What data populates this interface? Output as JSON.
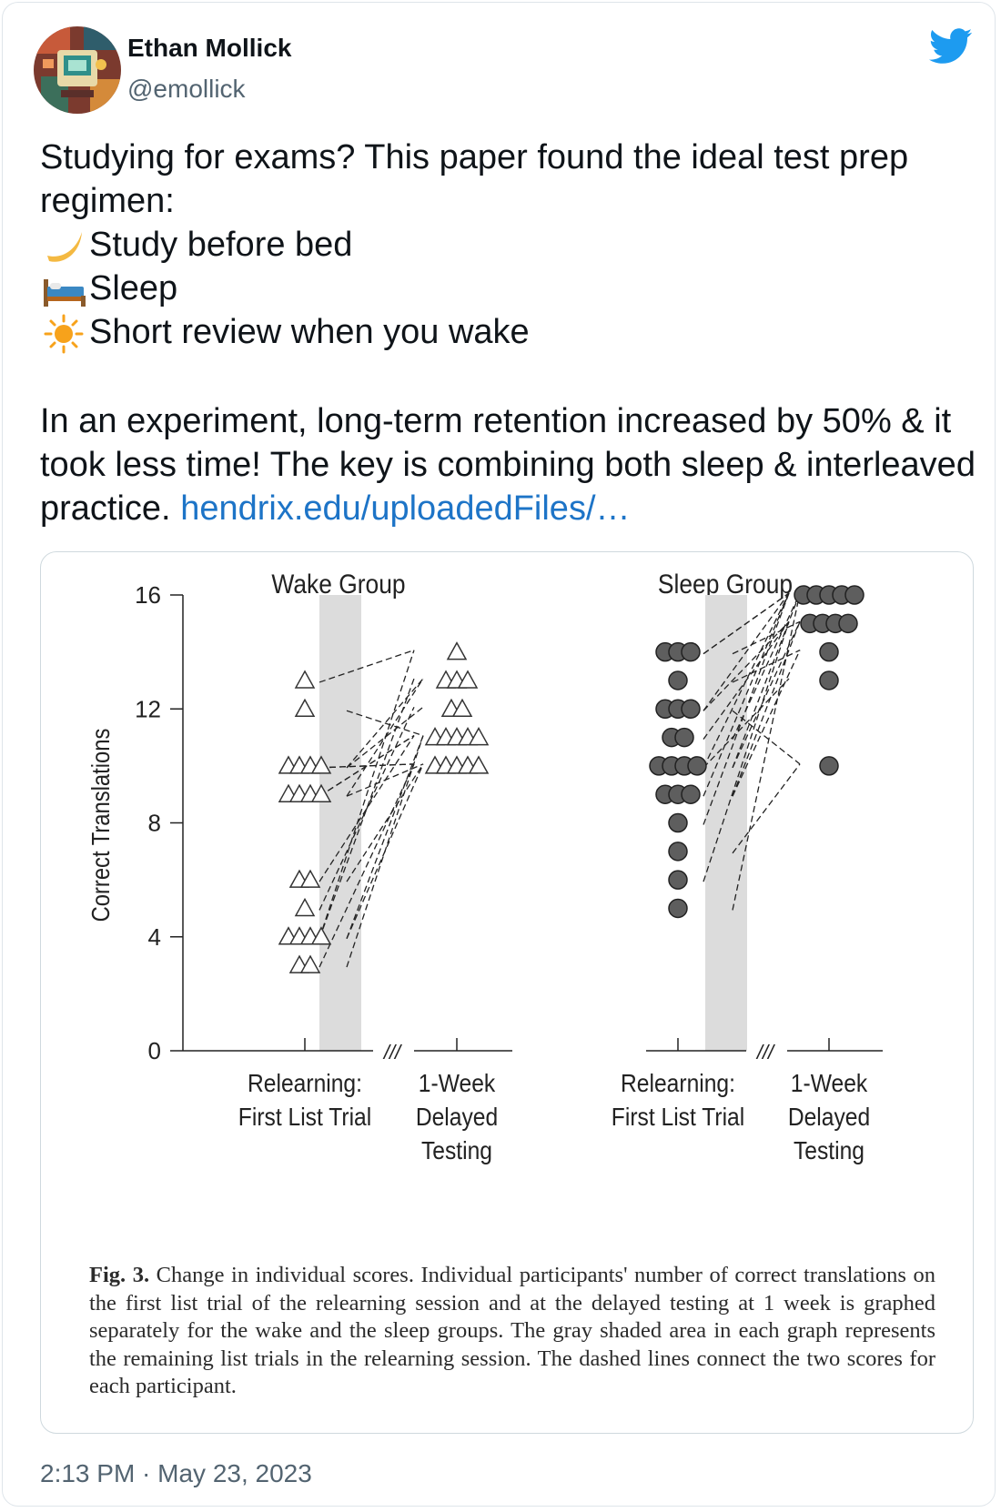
{
  "author": {
    "name": "Ethan Mollick",
    "handle": "@emollick"
  },
  "icons": {
    "brand": "twitter-bird-icon",
    "moon": "crescent-moon-emoji",
    "bed": "bed-emoji",
    "sun": "sun-emoji"
  },
  "colors": {
    "brand": "#1d9bf0",
    "link": "#1d74c7",
    "secondary_text": "#536471"
  },
  "tweet": {
    "line1": "Studying for exams? This paper found the ideal test prep regimen:",
    "step1": "Study before bed",
    "step2": "Sleep",
    "step3": "Short review when you wake",
    "para2": "In an experiment, long-term retention increased by 50% & it took less time! The key is combining both sleep & interleaved practice.",
    "link": "hendrix.edu/uploadedFiles/…"
  },
  "timestamp": "2:13 PM · May 23, 2023",
  "chart_data": {
    "type": "scatter",
    "ylabel": "Correct Translations",
    "ylim": [
      0,
      16
    ],
    "yticks": [
      "0",
      "4",
      "8",
      "12",
      "16"
    ],
    "break_mark": "///",
    "panels": [
      {
        "title": "Wake Group",
        "x_labels": [
          [
            "Relearning:",
            "First List Trial"
          ],
          [
            "1-Week",
            "Delayed",
            "Testing"
          ]
        ],
        "first_trial": [
          13,
          12,
          10,
          10,
          10,
          10,
          9,
          9,
          9,
          9,
          6,
          6,
          5,
          4,
          4,
          4,
          4,
          3,
          3
        ],
        "delayed": [
          14,
          13,
          13,
          13,
          12,
          12,
          11,
          11,
          11,
          11,
          11,
          10,
          10,
          10,
          10,
          10
        ]
      },
      {
        "title": "Sleep Group",
        "x_labels": [
          [
            "Relearning:",
            "First List Trial"
          ],
          [
            "1-Week",
            "Delayed",
            "Testing"
          ]
        ],
        "first_trial": [
          14,
          14,
          14,
          13,
          12,
          12,
          12,
          11,
          11,
          10,
          10,
          10,
          10,
          9,
          9,
          9,
          8,
          7,
          6,
          5
        ],
        "delayed": [
          16,
          16,
          16,
          16,
          16,
          15,
          15,
          15,
          15,
          14,
          13,
          10
        ]
      }
    ],
    "caption_label": "Fig. 3.",
    "caption": "Change in individual scores. Individual participants' number of correct translations on the first list trial of the relearning session and at the delayed testing at 1 week is graphed separately for the wake and the sleep groups. The gray shaded area in each graph represents the remaining list trials in the relearning session. The dashed lines connect the two scores for each participant."
  }
}
